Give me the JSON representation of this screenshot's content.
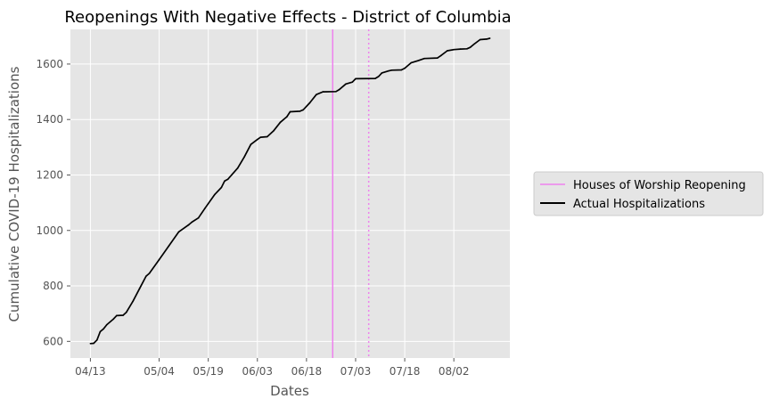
{
  "chart_data": {
    "type": "line",
    "title": "Reopenings With Negative Effects - District of Columbia",
    "xlabel": "Dates",
    "ylabel": "Cumulative COVID-19 Hospitalizations",
    "x_start": "2020-04-13",
    "x_tick_labels": [
      "04/13",
      "05/04",
      "05/19",
      "06/03",
      "06/18",
      "07/03",
      "07/18",
      "08/02"
    ],
    "y_ticks": [
      600,
      800,
      1000,
      1200,
      1400,
      1600
    ],
    "ylim": [
      540,
      1725
    ],
    "grid": true,
    "legend_position": "right",
    "series": [
      {
        "name": "Actual Hospitalizations",
        "color": "#000000",
        "points": [
          [
            "04/13",
            592
          ],
          [
            "04/14",
            593
          ],
          [
            "04/15",
            605
          ],
          [
            "04/16",
            635
          ],
          [
            "04/17",
            645
          ],
          [
            "04/18",
            660
          ],
          [
            "04/20",
            680
          ],
          [
            "04/21",
            693
          ],
          [
            "04/23",
            694
          ],
          [
            "04/24",
            705
          ],
          [
            "04/26",
            745
          ],
          [
            "04/28",
            790
          ],
          [
            "04/30",
            835
          ],
          [
            "05/01",
            845
          ],
          [
            "05/04",
            895
          ],
          [
            "05/07",
            945
          ],
          [
            "05/10",
            995
          ],
          [
            "05/13",
            1020
          ],
          [
            "05/14",
            1030
          ],
          [
            "05/16",
            1045
          ],
          [
            "05/18",
            1080
          ],
          [
            "05/21",
            1130
          ],
          [
            "05/23",
            1155
          ],
          [
            "05/24",
            1178
          ],
          [
            "05/25",
            1185
          ],
          [
            "05/28",
            1225
          ],
          [
            "05/30",
            1265
          ],
          [
            "06/01",
            1310
          ],
          [
            "06/03",
            1328
          ],
          [
            "06/04",
            1336
          ],
          [
            "06/06",
            1338
          ],
          [
            "06/08",
            1360
          ],
          [
            "06/10",
            1390
          ],
          [
            "06/12",
            1410
          ],
          [
            "06/13",
            1428
          ],
          [
            "06/16",
            1430
          ],
          [
            "06/17",
            1435
          ],
          [
            "06/19",
            1460
          ],
          [
            "06/21",
            1490
          ],
          [
            "06/23",
            1500
          ],
          [
            "06/27",
            1501
          ],
          [
            "06/28",
            1508
          ],
          [
            "06/30",
            1528
          ],
          [
            "07/02",
            1535
          ],
          [
            "07/03",
            1547
          ],
          [
            "07/09",
            1548
          ],
          [
            "07/10",
            1555
          ],
          [
            "07/11",
            1568
          ],
          [
            "07/13",
            1575
          ],
          [
            "07/14",
            1578
          ],
          [
            "07/17",
            1579
          ],
          [
            "07/18",
            1585
          ],
          [
            "07/20",
            1605
          ],
          [
            "07/22",
            1612
          ],
          [
            "07/24",
            1620
          ],
          [
            "07/28",
            1622
          ],
          [
            "07/29",
            1630
          ],
          [
            "07/31",
            1648
          ],
          [
            "08/02",
            1652
          ],
          [
            "08/04",
            1654
          ],
          [
            "08/06",
            1655
          ],
          [
            "08/07",
            1660
          ],
          [
            "08/08",
            1670
          ],
          [
            "08/10",
            1688
          ],
          [
            "08/12",
            1690
          ],
          [
            "08/13",
            1693
          ]
        ]
      }
    ],
    "vertical_lines": [
      {
        "name": "Houses of Worship Reopening",
        "date": "06/26",
        "color": "#ee82ee",
        "style": "solid"
      },
      {
        "date": "07/07",
        "color": "#ee82ee",
        "style": "dotted"
      }
    ],
    "legend": [
      {
        "label": "Houses of Worship Reopening",
        "color": "#ee82ee"
      },
      {
        "label": "Actual Hospitalizations",
        "color": "#000000"
      }
    ],
    "colors": {
      "plot_background": "#e5e5e5",
      "grid": "#ffffff",
      "tick_text": "#555555",
      "legend_background": "#e5e5e5",
      "legend_border": "#cccccc"
    }
  }
}
